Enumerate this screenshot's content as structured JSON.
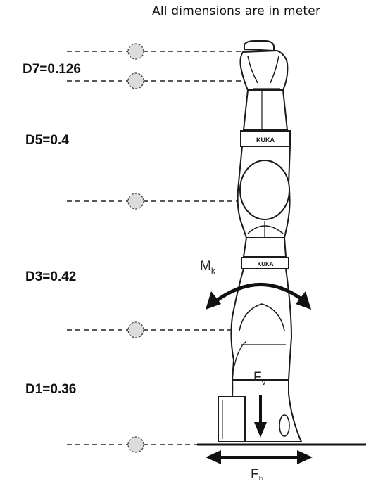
{
  "header": {
    "note": "All dimensions are in meter"
  },
  "dimensions": [
    {
      "id": "d7",
      "label": "D7=0.126"
    },
    {
      "id": "d5",
      "label": "D5=0.4"
    },
    {
      "id": "d3",
      "label": "D3=0.42"
    },
    {
      "id": "d1",
      "label": "D1=0.36"
    }
  ],
  "robot": {
    "brand_text": "KUKA",
    "moment_label": {
      "main": "M",
      "sub": "k"
    },
    "vertical_force_label": {
      "main": "F",
      "sub": "v"
    },
    "horizontal_force_label": {
      "main": "F",
      "sub": "h"
    }
  }
}
